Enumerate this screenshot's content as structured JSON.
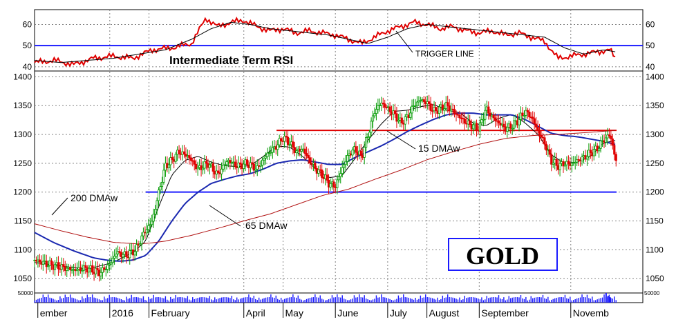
{
  "chart_data": [
    {
      "type": "line",
      "title": "Intermediate Term RSI",
      "ylim": [
        38,
        67
      ],
      "yticks": [
        40,
        50,
        60
      ],
      "reference_lines": [
        {
          "y": 50,
          "color": "#1a1aff"
        }
      ],
      "series": [
        {
          "color": "#e00000",
          "x": [
            0,
            30,
            60,
            90,
            120,
            150,
            180,
            210,
            240,
            262,
            280,
            300,
            320,
            340,
            360,
            380,
            400,
            420,
            440,
            460,
            480,
            500,
            520,
            540,
            560,
            580,
            600,
            620,
            640,
            660,
            680,
            700,
            720,
            740,
            760,
            780,
            800,
            820,
            840,
            860,
            880,
            890
          ],
          "values": [
            42,
            43,
            41,
            44,
            45,
            44,
            48,
            49,
            51,
            63,
            59,
            61,
            62,
            59,
            57,
            58,
            56,
            57,
            56,
            55,
            53,
            51,
            54,
            57,
            59,
            61,
            60,
            58,
            59,
            57,
            56,
            57,
            55,
            56,
            54,
            52,
            44,
            45,
            46,
            47,
            48,
            43
          ]
        },
        {
          "name": "TRIGGER LINE",
          "color": "#000000",
          "x": [
            0,
            40,
            80,
            120,
            160,
            200,
            240,
            270,
            300,
            330,
            360,
            390,
            420,
            450,
            480,
            510,
            540,
            570,
            600,
            630,
            660,
            690,
            720,
            750,
            780,
            810,
            840,
            870,
            890
          ],
          "values": [
            43,
            42,
            43,
            44,
            46,
            48,
            53,
            58,
            61,
            60,
            58,
            57,
            56,
            55,
            53,
            51,
            54,
            58,
            60,
            59,
            58,
            57,
            56,
            55,
            54,
            49,
            46,
            48,
            47
          ]
        }
      ],
      "annotations": [
        {
          "text": "TRIGGER LINE",
          "x": 600,
          "y": 44
        }
      ]
    },
    {
      "type": "line",
      "title": "GOLD",
      "ylim": [
        1025,
        1410
      ],
      "yticks": [
        1050,
        1100,
        1150,
        1200,
        1250,
        1300,
        1350,
        1400
      ],
      "xtick_labels": [
        {
          "label": "ember",
          "x": 5
        },
        {
          "label": "2016",
          "x": 115
        },
        {
          "label": "February",
          "x": 175
        },
        {
          "label": "April",
          "x": 320
        },
        {
          "label": "May",
          "x": 380
        },
        {
          "label": "June",
          "x": 460
        },
        {
          "label": "July",
          "x": 540
        },
        {
          "label": "August",
          "x": 600
        },
        {
          "label": "September",
          "x": 680
        },
        {
          "label": "Novemb",
          "x": 820
        }
      ],
      "reference_lines": [
        {
          "y": 1200,
          "x_from": 170,
          "x_to": 890,
          "color": "#1a1aff"
        },
        {
          "y": 1307,
          "x_from": 370,
          "x_to": 890,
          "color": "#e00000"
        }
      ],
      "series": [
        {
          "name": "Price",
          "color": "#000000",
          "x": [
            0,
            20,
            40,
            60,
            80,
            100,
            115,
            125,
            140,
            155,
            165,
            180,
            190,
            200,
            210,
            220,
            235,
            250,
            265,
            280,
            295,
            310,
            325,
            340,
            355,
            370,
            380,
            390,
            400,
            410,
            420,
            430,
            440,
            450,
            460,
            470,
            480,
            490,
            500,
            510,
            520,
            530,
            540,
            550,
            560,
            570,
            580,
            590,
            600,
            610,
            620,
            630,
            640,
            650,
            660,
            670,
            680,
            690,
            700,
            710,
            720,
            730,
            740,
            750,
            760,
            770,
            780,
            790,
            800,
            810,
            820,
            830,
            840,
            850,
            860,
            870,
            880,
            890
          ],
          "values": [
            1082,
            1075,
            1070,
            1065,
            1068,
            1060,
            1075,
            1095,
            1090,
            1100,
            1125,
            1150,
            1200,
            1245,
            1255,
            1270,
            1262,
            1240,
            1250,
            1230,
            1255,
            1245,
            1250,
            1240,
            1265,
            1280,
            1295,
            1285,
            1270,
            1275,
            1255,
            1240,
            1230,
            1215,
            1210,
            1240,
            1265,
            1275,
            1260,
            1300,
            1340,
            1355,
            1345,
            1335,
            1320,
            1330,
            1350,
            1360,
            1355,
            1340,
            1345,
            1350,
            1340,
            1330,
            1320,
            1315,
            1310,
            1345,
            1330,
            1320,
            1310,
            1315,
            1325,
            1340,
            1330,
            1305,
            1285,
            1255,
            1245,
            1250,
            1248,
            1255,
            1260,
            1268,
            1275,
            1290,
            1300,
            1250
          ]
        },
        {
          "name": "15 DMAw",
          "color": "#000000",
          "x": [
            0,
            40,
            80,
            120,
            150,
            170,
            190,
            210,
            230,
            250,
            270,
            290,
            310,
            330,
            350,
            370,
            390,
            410,
            430,
            450,
            470,
            490,
            510,
            530,
            550,
            570,
            590,
            610,
            630,
            650,
            670,
            690,
            710,
            730,
            750,
            770,
            790,
            810,
            830,
            850,
            870,
            890
          ],
          "values": [
            1078,
            1072,
            1066,
            1078,
            1095,
            1115,
            1175,
            1230,
            1255,
            1262,
            1252,
            1246,
            1244,
            1246,
            1262,
            1280,
            1278,
            1262,
            1240,
            1225,
            1228,
            1258,
            1290,
            1318,
            1340,
            1342,
            1348,
            1352,
            1342,
            1338,
            1320,
            1315,
            1328,
            1335,
            1320,
            1300,
            1265,
            1250,
            1252,
            1262,
            1285,
            1290
          ]
        },
        {
          "name": "65 DMAw",
          "color": "#1a28b0",
          "x": [
            0,
            30,
            60,
            90,
            110,
            130,
            150,
            170,
            190,
            210,
            230,
            250,
            270,
            290,
            310,
            330,
            350,
            370,
            390,
            410,
            430,
            450,
            470,
            490,
            510,
            530,
            550,
            570,
            590,
            610,
            630,
            650,
            670,
            690,
            710,
            730,
            750,
            770,
            790,
            810,
            830,
            850,
            870,
            890
          ],
          "values": [
            1130,
            1112,
            1098,
            1086,
            1082,
            1080,
            1082,
            1090,
            1115,
            1150,
            1180,
            1200,
            1215,
            1222,
            1228,
            1232,
            1240,
            1250,
            1254,
            1256,
            1252,
            1248,
            1248,
            1260,
            1270,
            1280,
            1292,
            1305,
            1316,
            1326,
            1334,
            1337,
            1337,
            1334,
            1334,
            1334,
            1326,
            1314,
            1302,
            1298,
            1296,
            1292,
            1288,
            1282
          ]
        },
        {
          "name": "200 DMAw",
          "color": "#b01010",
          "x": [
            0,
            40,
            80,
            120,
            160,
            180,
            200,
            240,
            280,
            320,
            360,
            400,
            440,
            480,
            520,
            560,
            600,
            640,
            680,
            720,
            760,
            800,
            840,
            890
          ],
          "values": [
            1145,
            1133,
            1122,
            1113,
            1110,
            1112,
            1115,
            1125,
            1137,
            1150,
            1162,
            1178,
            1194,
            1205,
            1222,
            1238,
            1256,
            1270,
            1283,
            1293,
            1298,
            1300,
            1303,
            1307
          ]
        }
      ],
      "annotations": [
        {
          "text": "200 DMAw",
          "x": 30,
          "y": 1175
        },
        {
          "text": "65 DMAw",
          "x": 310,
          "y": 1100
        },
        {
          "text": "15 DMAw",
          "x": 560,
          "y": 1285
        }
      ]
    },
    {
      "type": "bar",
      "name": "Volume",
      "ylim": [
        0,
        60000
      ],
      "yticks": [
        50000
      ],
      "ytick_labels": [
        "50000"
      ],
      "colors": {
        "bars": "#1a1aff"
      }
    }
  ]
}
